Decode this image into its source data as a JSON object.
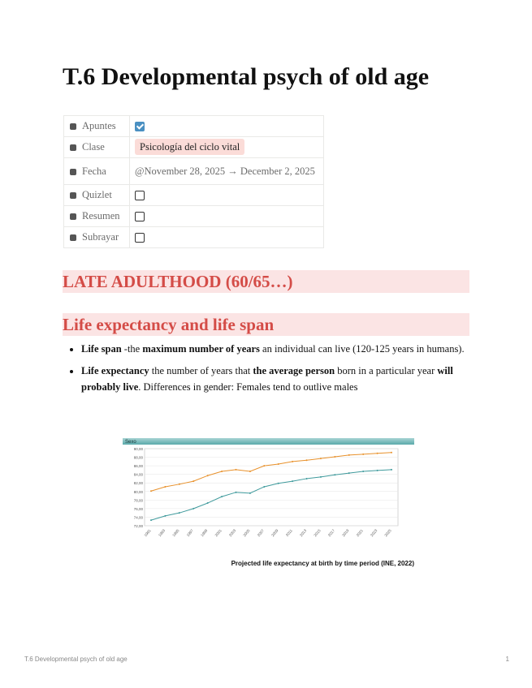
{
  "title": "T.6 Developmental psych of old age",
  "properties": [
    {
      "label": "Apuntes",
      "checked": true
    },
    {
      "label": "Clase",
      "tag": "Psicología del ciclo vital"
    },
    {
      "label": "Fecha",
      "text": "@November 28, 2025 → December 2, 2025"
    },
    {
      "label": "Quizlet",
      "checked": false
    },
    {
      "label": "Resumen",
      "checked": false
    },
    {
      "label": "Subrayar",
      "checked": false
    }
  ],
  "heading1": "LATE ADULTHOOD (60/65…)",
  "heading2": "Life expectancy and life span",
  "bullets": [
    [
      {
        "text": "Life span",
        "bold": true
      },
      {
        "text": " -the "
      },
      {
        "text": "maximum number of years",
        "bold": true
      },
      {
        "text": " an individual can live (120-125 years in humans)."
      }
    ],
    [
      {
        "text": "Life expectancy",
        "bold": true
      },
      {
        "text": " the number of years that "
      },
      {
        "text": "the average person",
        "bold": true
      },
      {
        "text": " born in a particular year "
      },
      {
        "text": "will probably live",
        "bold": true
      },
      {
        "text": ". Differences in gender: Females tend to outlive males"
      }
    ]
  ],
  "chart_data": {
    "type": "line",
    "header": "Sexo",
    "caption": "Projected life expectancy at birth by time period (INE, 2022)",
    "categories": [
      "1991",
      "1993",
      "1995",
      "1997",
      "1999",
      "2001",
      "2003",
      "2005",
      "2007",
      "2009",
      "2011",
      "2013",
      "2015",
      "2017",
      "2019",
      "2021",
      "2023",
      "2025"
    ],
    "series": [
      {
        "color": "#e8912b",
        "values": [
          80.1,
          81.1,
          81.7,
          82.4,
          83.7,
          84.7,
          85.1,
          84.7,
          86.0,
          86.4,
          87.0,
          87.3,
          87.7,
          88.1,
          88.5,
          88.7,
          88.9,
          89.1
        ]
      },
      {
        "color": "#3f9a9c",
        "values": [
          73.3,
          74.3,
          75.0,
          76.0,
          77.3,
          78.8,
          79.8,
          79.6,
          81.1,
          81.9,
          82.4,
          83.0,
          83.4,
          83.9,
          84.3,
          84.7,
          84.9,
          85.1
        ]
      }
    ],
    "ylim": [
      72,
      90
    ],
    "yticks": [
      {
        "value": 72,
        "label": "72,00"
      },
      {
        "value": 74,
        "label": "74,00"
      },
      {
        "value": 76,
        "label": "76,00"
      },
      {
        "value": 78,
        "label": "78,00"
      },
      {
        "value": 80,
        "label": "80,00"
      },
      {
        "value": 82,
        "label": "82,00"
      },
      {
        "value": 84,
        "label": "84,00"
      },
      {
        "value": 86,
        "label": "86,00"
      },
      {
        "value": 88,
        "label": "88,00"
      },
      {
        "value": 90,
        "label": "90,00"
      }
    ],
    "grid": true
  },
  "footer": {
    "text": "T.6 Developmental psych of old age",
    "page": "1"
  }
}
